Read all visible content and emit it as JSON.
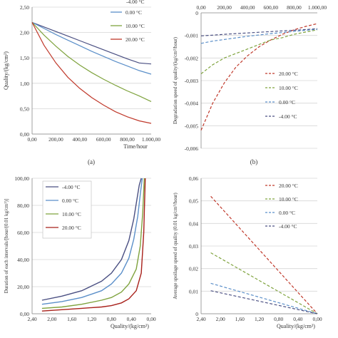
{
  "chart_data": [
    {
      "panel": "a",
      "type": "line",
      "caption": "(a)",
      "ylabel": "Quality/(kg/cm²)",
      "xlabel": "Time/hour",
      "xlim": [
        0,
        1000
      ],
      "ylim": [
        0,
        2.5
      ],
      "xticks": [
        "0,00",
        "200,00",
        "400,00",
        "600,00",
        "800,00",
        "1.000,00"
      ],
      "yticks": [
        "0,00",
        "0,50",
        "1,00",
        "1,50",
        "2,00",
        "2,50"
      ],
      "legend_placement": "top-right",
      "legend_extra": "-4.00 °C",
      "series": [
        {
          "name": "-4.00 °C",
          "color": "#4a4f82",
          "x": [
            0,
            100,
            200,
            300,
            400,
            500,
            600,
            700,
            800,
            900,
            1000
          ],
          "values": [
            2.2,
            2.11,
            2.02,
            1.93,
            1.84,
            1.75,
            1.66,
            1.57,
            1.48,
            1.4,
            1.38
          ]
        },
        {
          "name": "0.00 °C",
          "color": "#5b8fc9",
          "x": [
            0,
            100,
            200,
            300,
            400,
            500,
            600,
            700,
            800,
            900,
            1000
          ],
          "values": [
            2.2,
            2.08,
            1.96,
            1.85,
            1.74,
            1.63,
            1.53,
            1.43,
            1.34,
            1.25,
            1.18
          ]
        },
        {
          "name": "10.00 °C",
          "color": "#7fa33e",
          "x": [
            0,
            100,
            200,
            300,
            400,
            500,
            600,
            700,
            800,
            900,
            1000
          ],
          "values": [
            2.2,
            1.95,
            1.73,
            1.53,
            1.36,
            1.21,
            1.08,
            0.96,
            0.85,
            0.75,
            0.64
          ]
        },
        {
          "name": "20.00 °C",
          "color": "#c0392b",
          "x": [
            0,
            100,
            200,
            300,
            400,
            500,
            600,
            700,
            800,
            900,
            1000
          ],
          "values": [
            2.2,
            1.75,
            1.4,
            1.12,
            0.9,
            0.72,
            0.57,
            0.44,
            0.34,
            0.26,
            0.21
          ]
        }
      ]
    },
    {
      "panel": "b",
      "type": "line",
      "caption": "(b)",
      "ylabel": "Degradation speed of quality/(kg/cm²/hour)",
      "xlabel": "",
      "xlim": [
        0,
        1000
      ],
      "ylim": [
        -0.006,
        0
      ],
      "x_axis_position": "top",
      "xticks": [
        "0,00",
        "200,00",
        "400,00",
        "600,00",
        "800,00",
        "1.000,00"
      ],
      "yticks": [
        "0",
        "-0,001",
        "-0,002",
        "-0,003",
        "-0,004",
        "-0,005",
        "-0,006"
      ],
      "legend_placement": "bottom-right",
      "series": [
        {
          "name": "20.00 °C",
          "color": "#c0392b",
          "x": [
            0,
            100,
            200,
            300,
            400,
            500,
            600,
            700,
            800,
            900,
            1000
          ],
          "values": [
            -0.0052,
            -0.004,
            -0.0031,
            -0.0024,
            -0.0019,
            -0.0015,
            -0.0012,
            -0.00095,
            -0.00075,
            -0.0006,
            -0.00048
          ]
        },
        {
          "name": "10.00 °C",
          "color": "#7fa33e",
          "x": [
            0,
            100,
            200,
            300,
            400,
            500,
            600,
            700,
            800,
            900,
            1000
          ],
          "values": [
            -0.0027,
            -0.0023,
            -0.002,
            -0.0018,
            -0.0016,
            -0.0014,
            -0.0012,
            -0.0011,
            -0.00095,
            -0.00085,
            -0.00075
          ]
        },
        {
          "name": "0.00 °C",
          "color": "#5b8fc9",
          "x": [
            0,
            100,
            200,
            300,
            400,
            500,
            600,
            700,
            800,
            900,
            1000
          ],
          "values": [
            -0.00135,
            -0.00125,
            -0.00118,
            -0.00111,
            -0.00104,
            -0.00098,
            -0.00092,
            -0.00087,
            -0.00082,
            -0.00077,
            -0.00073
          ]
        },
        {
          "name": "-4.00 °C",
          "color": "#4a4f82",
          "x": [
            0,
            100,
            200,
            300,
            400,
            500,
            600,
            700,
            800,
            900,
            1000
          ],
          "values": [
            -0.00102,
            -0.00099,
            -0.00095,
            -0.00092,
            -0.00089,
            -0.00086,
            -0.00083,
            -0.0008,
            -0.00077,
            -0.00074,
            -0.0007
          ]
        }
      ]
    },
    {
      "panel": "c",
      "type": "line",
      "ylabel": "Duration of each intervals/[hour/(0.01 kg/cm²)]",
      "xlabel": "Quality/(kg/cm²)",
      "xlim": [
        2.4,
        0
      ],
      "ylim": [
        0,
        100
      ],
      "xticks": [
        "2,40",
        "2,00",
        "1,60",
        "1,20",
        "0,80",
        "0,40",
        "0,00"
      ],
      "yticks": [
        "0,00",
        "20,00",
        "40,00",
        "60,00",
        "80,00",
        "100,00"
      ],
      "legend_placement": "top-left",
      "series": [
        {
          "name": "-4.00 °C",
          "color": "#4a4f82",
          "x": [
            2.2,
            1.8,
            1.4,
            1.0,
            0.8,
            0.6,
            0.45,
            0.35,
            0.28,
            0.24,
            0.2
          ],
          "values": [
            10,
            13,
            17,
            24,
            30,
            40,
            54,
            70,
            86,
            95,
            100
          ]
        },
        {
          "name": "0.00 °C",
          "color": "#5b8fc9",
          "x": [
            2.2,
            1.8,
            1.4,
            1.0,
            0.8,
            0.6,
            0.45,
            0.35,
            0.27,
            0.22,
            0.18
          ],
          "values": [
            7,
            9,
            12,
            17,
            22,
            30,
            41,
            55,
            72,
            88,
            100
          ]
        },
        {
          "name": "10.00 °C",
          "color": "#7fa33e",
          "x": [
            2.2,
            1.8,
            1.4,
            1.0,
            0.8,
            0.6,
            0.45,
            0.3,
            0.22,
            0.17,
            0.14
          ],
          "values": [
            4,
            5,
            7,
            10,
            12,
            16,
            22,
            33,
            50,
            75,
            100
          ]
        },
        {
          "name": "20.00 °C",
          "color": "#a8201a",
          "x": [
            2.2,
            1.8,
            1.4,
            1.0,
            0.8,
            0.6,
            0.45,
            0.3,
            0.2,
            0.15,
            0.12
          ],
          "values": [
            2,
            3,
            4,
            5,
            6,
            8,
            11,
            17,
            30,
            60,
            100
          ]
        }
      ]
    },
    {
      "panel": "d",
      "type": "line",
      "ylabel": "Average spoilage speed of quality (0.01 kg/cm²/hour)",
      "xlabel": "Quality/(kg/cm²)",
      "xlim": [
        2.4,
        0
      ],
      "ylim": [
        0,
        0.06
      ],
      "xticks": [
        "2,40",
        "2,00",
        "1,60",
        "1,20",
        "0,80",
        "0,40",
        "0,00"
      ],
      "yticks": [
        "0",
        "0,01",
        "0,02",
        "0,03",
        "0,04",
        "0,05",
        "0,06"
      ],
      "legend_placement": "top-right",
      "series": [
        {
          "name": "20.00 °C",
          "color": "#c0392b",
          "x": [
            2.2,
            0
          ],
          "values": [
            0.052,
            0
          ]
        },
        {
          "name": "10.00 °C",
          "color": "#7fa33e",
          "x": [
            2.2,
            0
          ],
          "values": [
            0.027,
            0
          ]
        },
        {
          "name": "0.00 °C",
          "color": "#5b8fc9",
          "x": [
            2.2,
            0
          ],
          "values": [
            0.0135,
            0
          ]
        },
        {
          "name": "-4.00 °C",
          "color": "#4a4f82",
          "x": [
            2.2,
            0
          ],
          "values": [
            0.0102,
            0
          ]
        }
      ]
    }
  ]
}
